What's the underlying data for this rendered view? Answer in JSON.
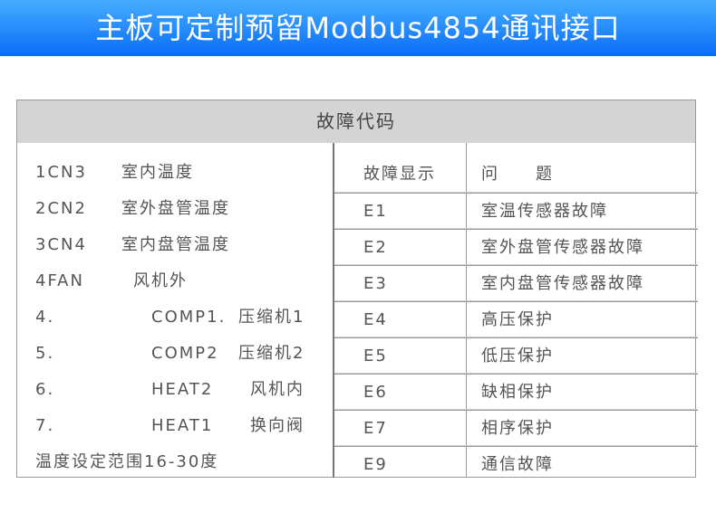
{
  "banner": {
    "title": "主板可定制预留Modbus4854通讯接口"
  },
  "table": {
    "title": "故障代码",
    "left_items": [
      {
        "code": "1CN3",
        "desc": "室内温度"
      },
      {
        "code": "2CN2",
        "desc": "室外盘管温度"
      },
      {
        "code": "3CN4",
        "desc": "室内盘管温度"
      },
      {
        "code": "4FAN",
        "desc": "风机外"
      },
      {
        "code": "4.",
        "mid": "COMP1.",
        "desc": "压缩机1"
      },
      {
        "code": "5.",
        "mid": "COMP2",
        "desc": "压缩机2"
      },
      {
        "code": "6.",
        "mid": "HEAT2",
        "desc": "风机内"
      },
      {
        "code": "7.",
        "mid": "HEAT1",
        "desc": "换向阀"
      },
      {
        "code": "温度设定范围16-30度"
      }
    ],
    "headers": [
      "故障显示",
      "问　　题"
    ],
    "rows": [
      [
        "E1",
        "室温传感器故障"
      ],
      [
        "E2",
        "室外盘管传感器故障"
      ],
      [
        "E3",
        "室内盘管传感器故障"
      ],
      [
        "E4",
        "高压保护"
      ],
      [
        "E5",
        "低压保护"
      ],
      [
        "E6",
        "缺相保护"
      ],
      [
        "E7",
        "相序保护"
      ],
      [
        "E9",
        "通信故障"
      ]
    ]
  },
  "colors": {
    "banner_top": "#45adff",
    "banner_bottom": "#0a6cf7",
    "header_bg": "#d4d4d4"
  }
}
